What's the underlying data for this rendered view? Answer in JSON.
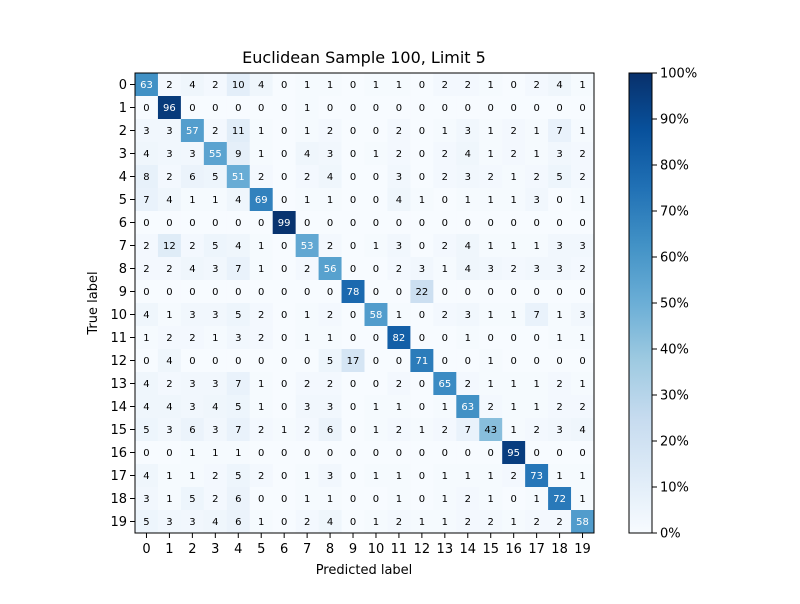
{
  "chart_data": {
    "type": "heatmap",
    "title": "Euclidean Sample 100, Limit 5",
    "xlabel": "Predicted label",
    "ylabel": "True label",
    "x_tick_labels": [
      "0",
      "1",
      "2",
      "3",
      "4",
      "5",
      "6",
      "7",
      "8",
      "9",
      "10",
      "11",
      "12",
      "13",
      "14",
      "15",
      "16",
      "17",
      "18",
      "19"
    ],
    "y_tick_labels": [
      "0",
      "1",
      "2",
      "3",
      "4",
      "5",
      "6",
      "7",
      "8",
      "9",
      "10",
      "11",
      "12",
      "13",
      "14",
      "15",
      "16",
      "17",
      "18",
      "19"
    ],
    "matrix": [
      [
        63,
        2,
        4,
        2,
        10,
        4,
        0,
        1,
        1,
        0,
        1,
        1,
        0,
        2,
        2,
        1,
        0,
        2,
        4,
        1
      ],
      [
        0,
        96,
        0,
        0,
        0,
        0,
        0,
        1,
        0,
        0,
        0,
        0,
        0,
        0,
        0,
        0,
        0,
        0,
        0,
        0
      ],
      [
        3,
        3,
        57,
        2,
        11,
        1,
        0,
        1,
        2,
        0,
        0,
        2,
        0,
        1,
        3,
        1,
        2,
        1,
        7,
        1
      ],
      [
        4,
        3,
        3,
        55,
        9,
        1,
        0,
        4,
        3,
        0,
        1,
        2,
        0,
        2,
        4,
        1,
        2,
        1,
        3,
        2
      ],
      [
        8,
        2,
        6,
        5,
        51,
        2,
        0,
        2,
        4,
        0,
        0,
        3,
        0,
        2,
        3,
        2,
        1,
        2,
        5,
        2
      ],
      [
        7,
        4,
        1,
        1,
        4,
        69,
        0,
        1,
        1,
        0,
        0,
        4,
        1,
        0,
        1,
        1,
        1,
        3,
        0,
        1
      ],
      [
        0,
        0,
        0,
        0,
        0,
        0,
        99,
        0,
        0,
        0,
        0,
        0,
        0,
        0,
        0,
        0,
        0,
        0,
        0,
        0
      ],
      [
        2,
        12,
        2,
        5,
        4,
        1,
        0,
        53,
        2,
        0,
        1,
        3,
        0,
        2,
        4,
        1,
        1,
        1,
        3,
        3
      ],
      [
        2,
        2,
        4,
        3,
        7,
        1,
        0,
        2,
        56,
        0,
        0,
        2,
        3,
        1,
        4,
        3,
        2,
        3,
        3,
        2
      ],
      [
        0,
        0,
        0,
        0,
        0,
        0,
        0,
        0,
        0,
        78,
        0,
        0,
        22,
        0,
        0,
        0,
        0,
        0,
        0,
        0
      ],
      [
        4,
        1,
        3,
        3,
        5,
        2,
        0,
        1,
        2,
        0,
        58,
        1,
        0,
        2,
        3,
        1,
        1,
        7,
        1,
        3
      ],
      [
        1,
        2,
        2,
        1,
        3,
        2,
        0,
        1,
        1,
        0,
        0,
        82,
        0,
        0,
        1,
        0,
        0,
        0,
        1,
        1
      ],
      [
        0,
        4,
        0,
        0,
        0,
        0,
        0,
        0,
        5,
        17,
        0,
        0,
        71,
        0,
        0,
        1,
        0,
        0,
        0,
        0
      ],
      [
        4,
        2,
        3,
        3,
        7,
        1,
        0,
        2,
        2,
        0,
        0,
        2,
        0,
        65,
        2,
        1,
        1,
        1,
        2,
        1
      ],
      [
        4,
        4,
        3,
        4,
        5,
        1,
        0,
        3,
        3,
        0,
        1,
        1,
        0,
        1,
        63,
        2,
        1,
        1,
        2,
        2
      ],
      [
        5,
        3,
        6,
        3,
        7,
        2,
        1,
        2,
        6,
        0,
        1,
        2,
        1,
        2,
        7,
        43,
        1,
        2,
        3,
        4
      ],
      [
        0,
        0,
        1,
        1,
        1,
        0,
        0,
        0,
        0,
        0,
        0,
        0,
        0,
        0,
        0,
        0,
        95,
        0,
        0,
        0
      ],
      [
        4,
        1,
        1,
        2,
        5,
        2,
        0,
        1,
        3,
        0,
        1,
        1,
        0,
        1,
        1,
        1,
        2,
        73,
        1,
        1
      ],
      [
        3,
        1,
        5,
        2,
        6,
        0,
        0,
        1,
        1,
        0,
        0,
        1,
        0,
        1,
        2,
        1,
        0,
        1,
        72,
        1
      ],
      [
        5,
        3,
        3,
        4,
        6,
        1,
        0,
        2,
        4,
        0,
        1,
        2,
        1,
        1,
        2,
        2,
        1,
        2,
        2,
        58
      ]
    ],
    "value_range": [
      0,
      100
    ],
    "colormap": "Blues",
    "colormap_stops": [
      "#f7fbff",
      "#deebf7",
      "#c6dbef",
      "#9ecae1",
      "#6baed6",
      "#4292c6",
      "#2171b5",
      "#08519c",
      "#08306b"
    ],
    "colorbar_ticks": [
      0,
      10,
      20,
      30,
      40,
      50,
      60,
      70,
      80,
      90,
      100
    ],
    "colorbar_tick_labels": [
      "0%",
      "10%",
      "20%",
      "30%",
      "40%",
      "50%",
      "60%",
      "70%",
      "80%",
      "90%",
      "100%"
    ],
    "text_color_threshold": 50,
    "text_colors": {
      "light": "#ffffff",
      "dark": "#000000"
    },
    "grid": false
  }
}
